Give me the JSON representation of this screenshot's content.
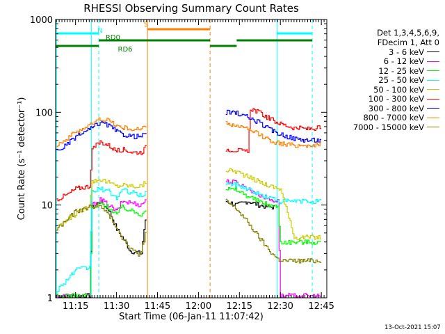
{
  "chart_data": {
    "type": "line",
    "title": "RHESSI Observing Summary Count Rates",
    "xlabel": "Start Time (06-Jan-11 11:07:42)",
    "ylabel": "Count Rate (s⁻¹ detector⁻¹)",
    "y_scale": "log",
    "ylim": [
      1,
      1000
    ],
    "xlim": [
      "11:07:42",
      "12:47:00"
    ],
    "x_tick_labels": [
      "11:15",
      "11:30",
      "11:45",
      "12:00",
      "12:15",
      "12:30",
      "12:45"
    ],
    "y_tick_labels": [
      "1",
      "10",
      "100",
      "1000"
    ],
    "legend_header": [
      "Det 1,3,4,5,6,9,",
      "FDecim 1, Att 0"
    ],
    "series": [
      {
        "name": "3 - 6 keV",
        "color": "#000000",
        "segments": [
          [
            [
              "11:08",
              1.05
            ],
            [
              "11:10",
              1.05
            ],
            [
              "11:15",
              1.05
            ],
            [
              "11:20",
              1.05
            ],
            [
              "11:21",
              9.5
            ],
            [
              "11:24",
              11
            ],
            [
              "11:27",
              9
            ],
            [
              "11:30",
              5.5
            ],
            [
              "11:32",
              4.5
            ],
            [
              "11:35",
              3.2
            ],
            [
              "11:39",
              3.0
            ],
            [
              "11:40",
              5.5
            ],
            [
              "11:41",
              8
            ]
          ],
          [
            [
              "12:10",
              11
            ],
            [
              "12:14",
              10
            ],
            [
              "12:18",
              11
            ],
            [
              "12:22",
              10
            ],
            [
              "12:26",
              9.5
            ],
            [
              "12:28",
              9.5
            ]
          ]
        ]
      },
      {
        "name": "6 - 12 keV",
        "color": "#ff00ff",
        "segments": [
          [
            [
              "11:08",
              1.05
            ],
            [
              "11:15",
              1.05
            ],
            [
              "11:20",
              1.05
            ],
            [
              "11:21",
              10
            ],
            [
              "11:24",
              11.5
            ],
            [
              "11:27",
              10
            ],
            [
              "11:30",
              8.5
            ],
            [
              "11:32",
              11
            ],
            [
              "11:36",
              10.5
            ],
            [
              "11:39",
              10
            ],
            [
              "11:41",
              12
            ]
          ],
          [
            [
              "12:10",
              18
            ],
            [
              "12:14",
              17.5
            ],
            [
              "12:18",
              15
            ],
            [
              "12:22",
              13
            ],
            [
              "12:26",
              11.5
            ],
            [
              "12:29",
              11
            ],
            [
              "12:30",
              1.05
            ],
            [
              "12:45",
              1.05
            ]
          ]
        ]
      },
      {
        "name": "12 - 25 keV",
        "color": "#00ff00",
        "segments": [
          [
            [
              "11:08",
              1.05
            ],
            [
              "11:15",
              1.05
            ],
            [
              "11:20",
              1.05
            ],
            [
              "11:21",
              9
            ],
            [
              "11:24",
              10.5
            ],
            [
              "11:27",
              9.5
            ],
            [
              "11:30",
              8
            ],
            [
              "11:32",
              9.5
            ],
            [
              "11:36",
              8.5
            ],
            [
              "11:39",
              8
            ],
            [
              "11:41",
              9.5
            ]
          ],
          [
            [
              "12:10",
              15
            ],
            [
              "12:14",
              14.5
            ],
            [
              "12:18",
              12.5
            ],
            [
              "12:22",
              11
            ],
            [
              "12:26",
              10
            ],
            [
              "12:29",
              9.5
            ],
            [
              "12:30",
              4
            ],
            [
              "12:45",
              4
            ]
          ]
        ]
      },
      {
        "name": "25 - 50 keV",
        "color": "#00ffff",
        "segments": [
          [
            [
              "11:08",
              1.2
            ],
            [
              "11:12",
              1.6
            ],
            [
              "11:15",
              2.0
            ],
            [
              "11:20",
              2.1
            ],
            [
              "11:21",
              14
            ],
            [
              "11:24",
              15
            ],
            [
              "11:27",
              14
            ],
            [
              "11:30",
              12
            ],
            [
              "11:32",
              14.5
            ],
            [
              "11:36",
              13.5
            ],
            [
              "11:39",
              12.5
            ],
            [
              "11:41",
              14
            ]
          ],
          [
            [
              "12:10",
              17
            ],
            [
              "12:14",
              16.5
            ],
            [
              "12:18",
              15
            ],
            [
              "12:22",
              13
            ],
            [
              "12:26",
              12
            ],
            [
              "12:30",
              11
            ],
            [
              "12:35",
              11
            ],
            [
              "12:40",
              11
            ],
            [
              "12:45",
              11
            ]
          ]
        ]
      },
      {
        "name": "50 - 100 keV",
        "color": "#cccc00",
        "segments": [
          [
            [
              "11:08",
              5.5
            ],
            [
              "11:12",
              7
            ],
            [
              "11:15",
              8
            ],
            [
              "11:20",
              10
            ],
            [
              "11:21",
              18
            ],
            [
              "11:24",
              19
            ],
            [
              "11:27",
              17.5
            ],
            [
              "11:30",
              16
            ],
            [
              "11:32",
              16.5
            ],
            [
              "11:36",
              16
            ],
            [
              "11:39",
              16
            ],
            [
              "11:41",
              18
            ]
          ],
          [
            [
              "12:10",
              24
            ],
            [
              "12:14",
              23
            ],
            [
              "12:18",
              20
            ],
            [
              "12:22",
              18
            ],
            [
              "12:26",
              16
            ],
            [
              "12:30",
              15
            ],
            [
              "12:35",
              4.5
            ],
            [
              "12:40",
              4.5
            ],
            [
              "12:45",
              4.5
            ]
          ]
        ]
      },
      {
        "name": "100 - 300 keV",
        "color": "#ff0000",
        "segments": [
          [
            [
              "11:08",
              11.5
            ],
            [
              "11:12",
              13
            ],
            [
              "11:15",
              15
            ],
            [
              "11:20",
              16
            ],
            [
              "11:21",
              40
            ],
            [
              "11:24",
              48
            ],
            [
              "11:27",
              44
            ],
            [
              "11:30",
              38
            ],
            [
              "11:32",
              40
            ],
            [
              "11:36",
              37
            ],
            [
              "11:39",
              37
            ],
            [
              "11:41",
              43
            ]
          ],
          [
            [
              "12:10",
              40
            ],
            [
              "12:14",
              39
            ],
            [
              "12:18",
              37
            ],
            [
              "12:19",
              110
            ],
            [
              "12:22",
              100
            ],
            [
              "12:26",
              85
            ],
            [
              "12:30",
              75
            ],
            [
              "12:35",
              68
            ],
            [
              "12:40",
              66
            ],
            [
              "12:45",
              68
            ]
          ]
        ]
      },
      {
        "name": "300 - 800 keV",
        "color": "#0000ff",
        "segments": [
          [
            [
              "11:08",
              38
            ],
            [
              "11:12",
              45
            ],
            [
              "11:15",
              55
            ],
            [
              "11:20",
              65
            ],
            [
              "11:24",
              78
            ],
            [
              "11:27",
              72
            ],
            [
              "11:30",
              62
            ],
            [
              "11:32",
              58
            ],
            [
              "11:36",
              55
            ],
            [
              "11:39",
              55
            ],
            [
              "11:41",
              60
            ]
          ],
          [
            [
              "12:10",
              100
            ],
            [
              "12:14",
              98
            ],
            [
              "12:18",
              88
            ],
            [
              "12:22",
              78
            ],
            [
              "12:26",
              65
            ],
            [
              "12:30",
              58
            ],
            [
              "12:35",
              52
            ],
            [
              "12:40",
              50
            ],
            [
              "12:45",
              50
            ]
          ]
        ]
      },
      {
        "name": "800 - 7000 keV",
        "color": "#ff8000",
        "segments": [
          [
            [
              "11:08",
              45
            ],
            [
              "11:12",
              52
            ],
            [
              "11:15",
              62
            ],
            [
              "11:20",
              72
            ],
            [
              "11:24",
              85
            ],
            [
              "11:27",
              82
            ],
            [
              "11:30",
              72
            ],
            [
              "11:32",
              68
            ],
            [
              "11:36",
              66
            ],
            [
              "11:39",
              65
            ],
            [
              "11:41",
              75
            ]
          ],
          [
            [
              "12:10",
              75
            ],
            [
              "12:14",
              72
            ],
            [
              "12:18",
              65
            ],
            [
              "12:22",
              58
            ],
            [
              "12:26",
              50
            ],
            [
              "12:30",
              46
            ],
            [
              "12:35",
              44
            ],
            [
              "12:40",
              44
            ],
            [
              "12:45",
              45
            ]
          ]
        ]
      },
      {
        "name": "7000 - 15000 keV",
        "color": "#808000",
        "segments": [
          [
            [
              "11:08",
              5.5
            ],
            [
              "11:12",
              7
            ],
            [
              "11:15",
              8.5
            ],
            [
              "11:20",
              9.5
            ],
            [
              "11:23",
              10
            ],
            [
              "11:26",
              8.5
            ],
            [
              "11:29",
              6.5
            ],
            [
              "11:32",
              4.5
            ],
            [
              "11:35",
              3.5
            ],
            [
              "11:38",
              2.8
            ],
            [
              "11:40",
              4.0
            ],
            [
              "11:41",
              6
            ]
          ],
          [
            [
              "12:10",
              11
            ],
            [
              "12:14",
              9
            ],
            [
              "12:18",
              6.5
            ],
            [
              "12:22",
              4.5
            ],
            [
              "12:26",
              3.2
            ],
            [
              "12:29",
              2.6
            ],
            [
              "12:32",
              2.5
            ],
            [
              "12:38",
              2.5
            ],
            [
              "12:45",
              2.5
            ]
          ]
        ]
      }
    ],
    "vertical_markers": [
      {
        "time": "11:08:00",
        "color": "#00ffff",
        "style": "solid"
      },
      {
        "time": "11:20:45",
        "color": "#00ffff",
        "style": "solid"
      },
      {
        "time": "11:23:30",
        "color": "#00ffff",
        "style": "dashed"
      },
      {
        "time": "11:41:20",
        "color": "#ff8000",
        "style": "solid"
      },
      {
        "time": "12:04:15",
        "color": "#ff8000",
        "style": "dashed"
      },
      {
        "time": "12:28:45",
        "color": "#00ffff",
        "style": "solid"
      },
      {
        "time": "12:41:40",
        "color": "#00ffff",
        "style": "dashed"
      }
    ],
    "state_bars": [
      {
        "label": "N",
        "color": "#00ffff",
        "intervals": [
          [
            "11:07:42",
            "11:23:30"
          ],
          [
            "12:28:45",
            "12:41:40"
          ]
        ]
      },
      {
        "label": "S",
        "color": "#ff8000",
        "intervals": [
          [
            "11:41:20",
            "12:04:15"
          ]
        ]
      },
      {
        "label": "RD0",
        "color": "#008000",
        "intervals": [
          [
            "11:23:30",
            "12:04:15"
          ],
          [
            "12:14:00",
            "12:41:40"
          ]
        ]
      },
      {
        "label": "RD6",
        "color": "#008000",
        "intervals": [
          [
            "11:07:42",
            "11:23:30"
          ],
          [
            "12:04:15",
            "12:14:00"
          ]
        ]
      }
    ]
  },
  "footer": {
    "timestamp": "13-Oct-2021 15:07"
  }
}
